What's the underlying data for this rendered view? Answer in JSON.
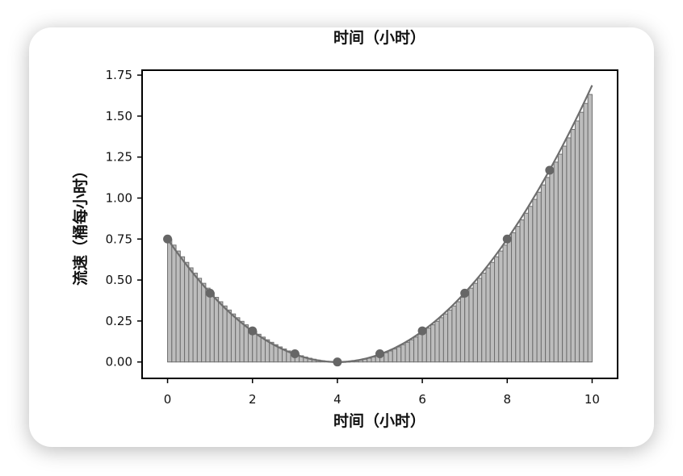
{
  "chart_data": {
    "type": "bar",
    "title": "时间（小时）",
    "xlabel": "时间（小时）",
    "ylabel": "流速（桶每小时）",
    "xlim": [
      -0.6,
      10.6
    ],
    "ylim": [
      -0.1,
      1.78
    ],
    "xticks": [
      "0",
      "2",
      "4",
      "6",
      "8",
      "10"
    ],
    "yticks": [
      "0.00",
      "0.25",
      "0.50",
      "0.75",
      "1.00",
      "1.25",
      "1.50",
      "1.75"
    ],
    "grid": false,
    "curve": {
      "type": "line",
      "formula": "(x-4)^2 / 21.33",
      "x_range": [
        0,
        10
      ]
    },
    "bars": {
      "x_start": 0,
      "x_end": 10,
      "count": 100
    },
    "points": {
      "x": [
        0,
        1,
        2,
        3,
        4,
        5,
        6,
        7,
        8,
        9
      ],
      "y": [
        0.75,
        0.42,
        0.19,
        0.05,
        0.0,
        0.05,
        0.19,
        0.42,
        0.75,
        1.17
      ]
    },
    "colors": {
      "bars_fill": "#bdbdbd",
      "bars_stroke": "#6e6e6e",
      "curve": "#6e6e6e",
      "points": "#666666"
    }
  }
}
